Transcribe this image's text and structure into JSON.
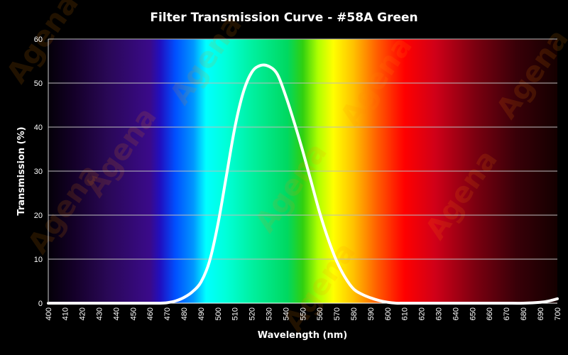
{
  "chart_data": {
    "type": "line",
    "title": "Filter Transmission Curve - #58A Green",
    "xlabel": "Wavelength (nm)",
    "ylabel": "Transmission (%)",
    "xlim": [
      400,
      700
    ],
    "ylim": [
      0,
      60
    ],
    "x_ticks": [
      "400",
      "410",
      "420",
      "430",
      "440",
      "450",
      "460",
      "470",
      "480",
      "490",
      "500",
      "510",
      "520",
      "530",
      "540",
      "550",
      "560",
      "570",
      "580",
      "590",
      "600",
      "610",
      "620",
      "630",
      "640",
      "650",
      "660",
      "670",
      "680",
      "690",
      "700"
    ],
    "y_ticks": [
      "0",
      "10",
      "20",
      "30",
      "40",
      "50",
      "60"
    ],
    "grid": true,
    "legend": "none",
    "background": "visible spectrum gradient",
    "series": [
      {
        "color": "#ffffff",
        "x": [
          400,
          410,
          420,
          430,
          440,
          450,
          460,
          465,
          470,
          475,
          480,
          485,
          490,
          495,
          500,
          505,
          510,
          515,
          520,
          525,
          530,
          535,
          540,
          545,
          550,
          555,
          560,
          565,
          570,
          575,
          580,
          585,
          590,
          595,
          600,
          605,
          610,
          620,
          630,
          640,
          650,
          660,
          670,
          680,
          690,
          695,
          700
        ],
        "y": [
          0,
          0,
          0,
          0,
          0,
          0,
          0,
          0,
          0.1,
          0.5,
          1.3,
          2.6,
          4.8,
          9.5,
          18,
          29,
          40,
          48,
          52.5,
          54,
          53.8,
          52,
          47,
          41,
          34.5,
          27.5,
          20.5,
          14.5,
          9.5,
          5.8,
          3.2,
          2,
          1.2,
          0.6,
          0.2,
          0,
          0,
          0,
          0,
          0,
          0,
          0,
          0,
          0,
          0.2,
          0.5,
          1
        ]
      }
    ]
  },
  "watermark": {
    "text": "Agena",
    "color": "#ff8c00"
  }
}
